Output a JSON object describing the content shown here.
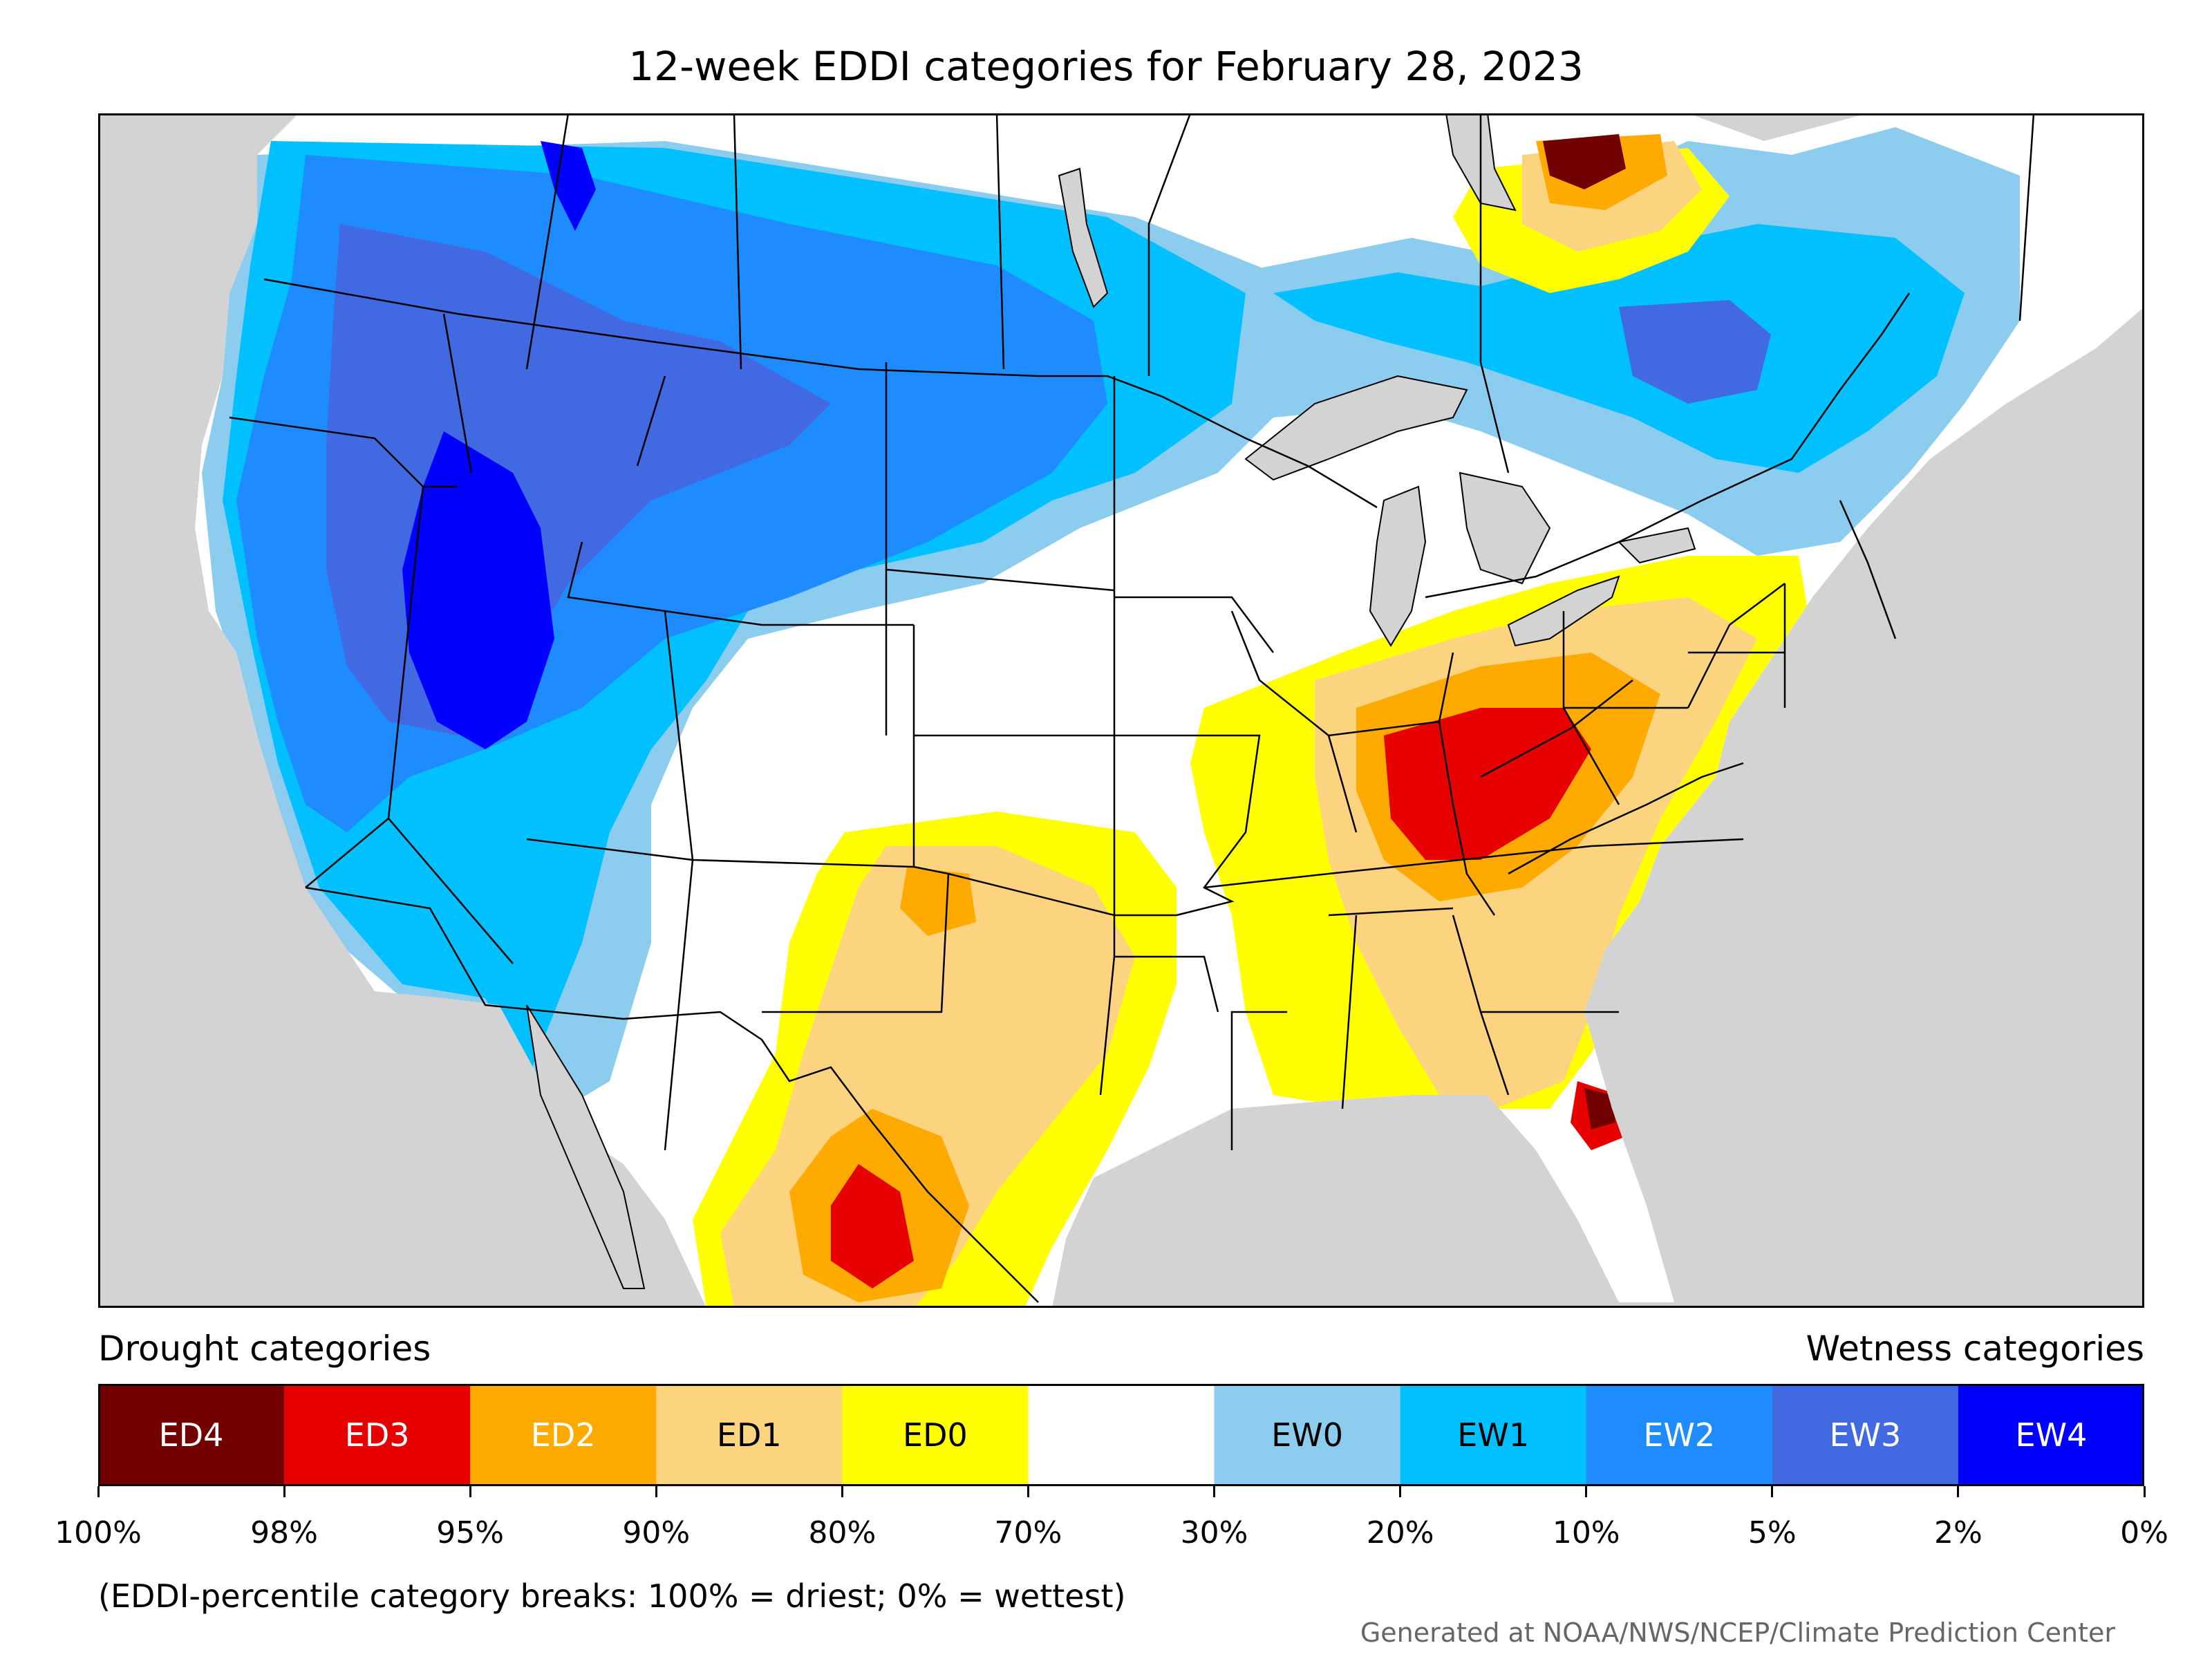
{
  "title": "12-week EDDI categories for February 28, 2023",
  "legend": {
    "drought_heading": "Drought categories",
    "wetness_heading": "Wetness categories",
    "segments": [
      {
        "label": "ED4",
        "color": "#730000",
        "text_color": "#ffffff"
      },
      {
        "label": "ED3",
        "color": "#e60000",
        "text_color": "#ffffff"
      },
      {
        "label": "ED2",
        "color": "#ffaa00",
        "text_color": "#ffffff"
      },
      {
        "label": "ED1",
        "color": "#fcd37f",
        "text_color": "#000000"
      },
      {
        "label": "ED0",
        "color": "#ffff00",
        "text_color": "#000000"
      },
      {
        "label": "",
        "color": "#ffffff",
        "text_color": "#000000"
      },
      {
        "label": "EW0",
        "color": "#8ccdef",
        "text_color": "#000000"
      },
      {
        "label": "EW1",
        "color": "#00c0ff",
        "text_color": "#000000"
      },
      {
        "label": "EW2",
        "color": "#1e8cff",
        "text_color": "#ffffff"
      },
      {
        "label": "EW3",
        "color": "#4169e1",
        "text_color": "#ffffff"
      },
      {
        "label": "EW4",
        "color": "#0000ff",
        "text_color": "#ffffff"
      }
    ],
    "ticks": [
      "100%",
      "98%",
      "95%",
      "90%",
      "80%",
      "70%",
      "30%",
      "20%",
      "10%",
      "5%",
      "2%",
      "0%"
    ]
  },
  "footnote": "(EDDI-percentile category breaks: 100% = driest; 0% = wettest)",
  "credit": "Generated at NOAA/NWS/NCEP/Climate Prediction Center",
  "map_colors": {
    "background": "#d3d3d3",
    "land": "#ffffff",
    "water": "#d3d3d3",
    "border": "#000000"
  }
}
